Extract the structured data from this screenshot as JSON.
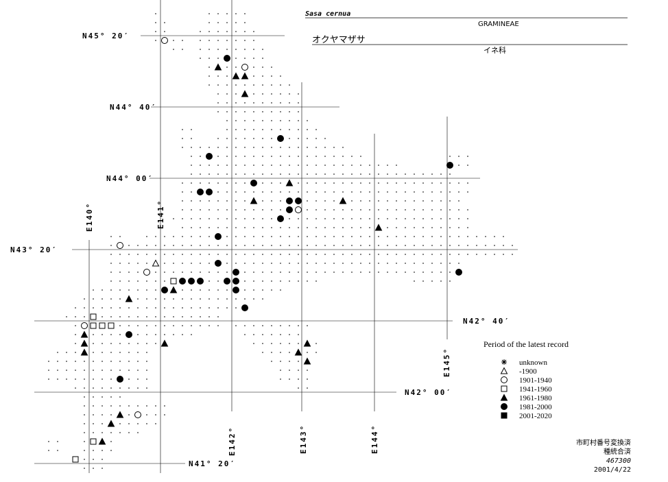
{
  "header": {
    "species": "Sasa cernua",
    "family": "GRAMINEAE",
    "japanese_name": "オクヤマザサ",
    "japanese_family": "イネ科"
  },
  "latitude_labels": [
    "N45° 20′",
    "N44° 40′",
    "N44° 00′",
    "N43° 20′",
    "N42° 40′",
    "N42° 00′",
    "N41° 20′"
  ],
  "longitude_labels": [
    "E140°",
    "E141°",
    "E142°",
    "E143°",
    "E144°",
    "E145°"
  ],
  "legend": {
    "title": "Period of the latest record",
    "items": [
      "unknown",
      "-1900",
      "1901-1940",
      "1941-1960",
      "1961-1980",
      "1981-2000",
      "2001-2020"
    ]
  },
  "footer": [
    "市町村番号変換済",
    "種統合済",
    "467300",
    "2001/4/22"
  ]
}
